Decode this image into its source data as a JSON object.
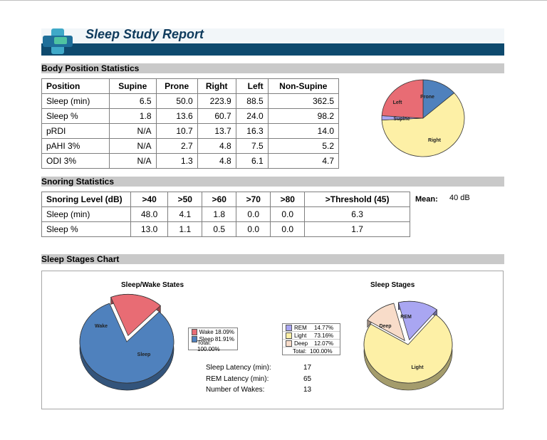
{
  "report": {
    "title": "Sleep Study Report"
  },
  "body_position": {
    "section_title": "Body Position Statistics",
    "columns": [
      "Position",
      "Supine",
      "Prone",
      "Right",
      "Left",
      "Non-Supine"
    ],
    "rows": [
      [
        "Sleep (min)",
        "6.5",
        "50.0",
        "223.9",
        "88.5",
        "362.5"
      ],
      [
        "Sleep %",
        "1.8",
        "13.6",
        "60.7",
        "24.0",
        "98.2"
      ],
      [
        "pRDI",
        "N/A",
        "10.7",
        "13.7",
        "16.3",
        "14.0"
      ],
      [
        "pAHI 3%",
        "N/A",
        "2.7",
        "4.8",
        "7.5",
        "5.2"
      ],
      [
        "ODI 3%",
        "N/A",
        "1.3",
        "4.8",
        "6.1",
        "4.7"
      ]
    ],
    "pie": {
      "type": "pie",
      "slices": [
        {
          "label": "Prone",
          "value": 13.6,
          "color": "#4f81bd"
        },
        {
          "label": "Right",
          "value": 60.7,
          "color": "#fdf0a6"
        },
        {
          "label": "Supine",
          "value": 1.8,
          "color": "#a9a6f2"
        },
        {
          "label": "Left",
          "value": 24.0,
          "color": "#e86c74"
        }
      ]
    }
  },
  "snoring": {
    "section_title": "Snoring Statistics",
    "columns": [
      "Snoring Level (dB)",
      ">40",
      ">50",
      ">60",
      ">70",
      ">80",
      ">Threshold (45)"
    ],
    "rows": [
      [
        "Sleep (min)",
        "48.0",
        "4.1",
        "1.8",
        "0.0",
        "0.0",
        "6.3"
      ],
      [
        "Sleep %",
        "13.0",
        "1.1",
        "0.5",
        "0.0",
        "0.0",
        "1.7"
      ]
    ],
    "mean_label": "Mean:",
    "mean_value": "40 dB"
  },
  "sleep_stages": {
    "section_title": "Sleep Stages Chart",
    "wake_chart": {
      "title": "Sleep/Wake  States",
      "slices": [
        {
          "label": "Wake",
          "value": 18.09,
          "color": "#e86c74"
        },
        {
          "label": "Sleep",
          "value": 81.91,
          "color": "#4f81bd"
        }
      ],
      "legend": [
        {
          "name": "Wake",
          "pct": "18.09%",
          "color": "#e86c74"
        },
        {
          "name": "Sleep",
          "pct": "81.91%",
          "color": "#4f81bd"
        }
      ],
      "total": "Total:  100.00%"
    },
    "stages_chart": {
      "title": "Sleep  Stages",
      "slices": [
        {
          "label": "REM",
          "value": 14.77,
          "color": "#a9a6f2"
        },
        {
          "label": "Light",
          "value": 73.16,
          "color": "#fdf0a6"
        },
        {
          "label": "Deep",
          "value": 12.07,
          "color": "#f8dcc9"
        }
      ],
      "legend": [
        {
          "name": "REM",
          "pct": "14.77%",
          "color": "#a9a6f2"
        },
        {
          "name": "Light",
          "pct": "73.16%",
          "color": "#fdf0a6"
        },
        {
          "name": "Deep",
          "pct": "12.07%",
          "color": "#f8dcc9"
        }
      ],
      "total_label": "Total:",
      "total_value": "100.00%"
    },
    "latency": [
      {
        "label": "Sleep Latency (min):",
        "value": "17"
      },
      {
        "label": "REM Latency (min):",
        "value": "65"
      },
      {
        "label": "Number of Wakes:",
        "value": "13"
      }
    ]
  }
}
